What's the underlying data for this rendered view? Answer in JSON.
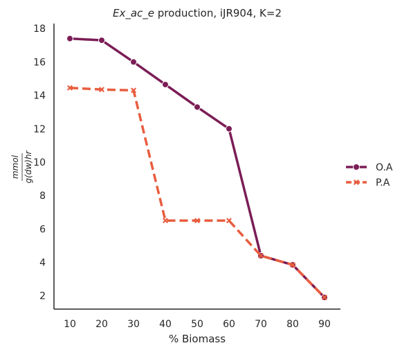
{
  "chart_data": {
    "type": "line",
    "title_italic": "Ex_ac_e",
    "title_rest": " production, iJR904, K=2",
    "xlabel": "% Biomass",
    "ylabel_numerator": "mmol",
    "ylabel_denominator": "g(dw)hr",
    "x": [
      10,
      20,
      30,
      40,
      50,
      60,
      70,
      80,
      90
    ],
    "xlim": [
      5,
      95
    ],
    "ylim": [
      1.2,
      18.3
    ],
    "xticks": [
      10,
      20,
      30,
      40,
      50,
      60,
      70,
      80,
      90
    ],
    "yticks": [
      2,
      4,
      6,
      8,
      10,
      12,
      14,
      16,
      18
    ],
    "grid": false,
    "legend_position": "right",
    "series": [
      {
        "name": "O.A",
        "values": [
          17.4,
          17.3,
          16.0,
          14.65,
          13.3,
          12.0,
          4.4,
          3.85,
          1.9
        ],
        "color": "#7b1d56",
        "marker": "circle",
        "dashed": false
      },
      {
        "name": "P.A",
        "values": [
          14.45,
          14.35,
          14.3,
          6.5,
          6.5,
          6.5,
          4.4,
          3.85,
          1.9
        ],
        "color": "#e85d3f",
        "marker": "x",
        "dashed": true
      }
    ]
  }
}
